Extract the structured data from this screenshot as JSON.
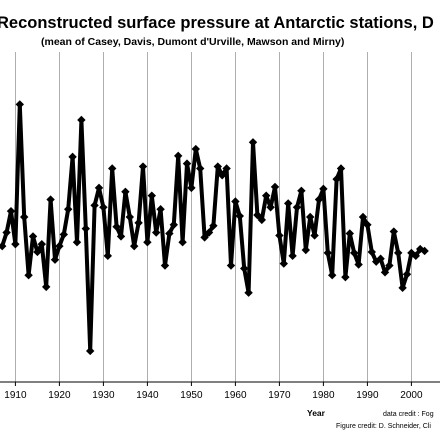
{
  "chart_data": {
    "type": "line",
    "title": "Reconstructed surface pressure at Antarctic stations, D",
    "subtitle": "(mean of Casey, Davis, Dumont d'Urville, Mawson and Mirny)",
    "xlabel": "Year",
    "ylabel": "",
    "x_ticks": [
      "1910",
      "1920",
      "1930",
      "1940",
      "1950",
      "1960",
      "1970",
      "1980",
      "1990",
      "2000"
    ],
    "xlim": [
      1906.5,
      2006.5
    ],
    "ylim": [
      0,
      340
    ],
    "grid": "vertical",
    "legend": "none",
    "credits": [
      "data credit : Fog",
      "Figure credit: D. Schneider, Cli"
    ],
    "series": [
      {
        "color": "#000000",
        "x": [
          1907,
          1908,
          1909,
          1910,
          1911,
          1912,
          1913,
          1914,
          1915,
          1916,
          1917,
          1918,
          1919,
          1920,
          1921,
          1922,
          1923,
          1924,
          1925,
          1926,
          1927,
          1928,
          1929,
          1930,
          1931,
          1932,
          1933,
          1934,
          1935,
          1936,
          1937,
          1938,
          1939,
          1940,
          1941,
          1942,
          1943,
          1944,
          1945,
          1946,
          1947,
          1948,
          1949,
          1950,
          1951,
          1952,
          1953,
          1954,
          1955,
          1956,
          1957,
          1958,
          1959,
          1960,
          1961,
          1962,
          1963,
          1964,
          1965,
          1966,
          1967,
          1968,
          1969,
          1970,
          1971,
          1972,
          1973,
          1974,
          1975,
          1976,
          1977,
          1978,
          1979,
          1980,
          1981,
          1982,
          1983,
          1984,
          1985,
          1986,
          1987,
          1988,
          1989,
          1990,
          1991,
          1992,
          1993,
          1994,
          1995,
          1996,
          1997,
          1998,
          1999,
          2000,
          2001,
          2002,
          2003
        ],
        "y": [
          140,
          154,
          176,
          142,
          286,
          170,
          110,
          150,
          134,
          142,
          98,
          188,
          126,
          140,
          152,
          178,
          232,
          144,
          270,
          158,
          32,
          182,
          200,
          180,
          130,
          220,
          160,
          150,
          196,
          170,
          140,
          164,
          222,
          144,
          192,
          154,
          178,
          120,
          153,
          162,
          233,
          144,
          225,
          200,
          240,
          220,
          149,
          154,
          161,
          222,
          213,
          220,
          120,
          186,
          171,
          117,
          92,
          247,
          172,
          167,
          192,
          180,
          201,
          151,
          122,
          184,
          130,
          180,
          197,
          136,
          170,
          151,
          188,
          199,
          133,
          110,
          209,
          220,
          108,
          153,
          133,
          121,
          170,
          162,
          134,
          124,
          127,
          113,
          120,
          155,
          133,
          97,
          111,
          133,
          130,
          137,
          135
        ]
      }
    ]
  }
}
